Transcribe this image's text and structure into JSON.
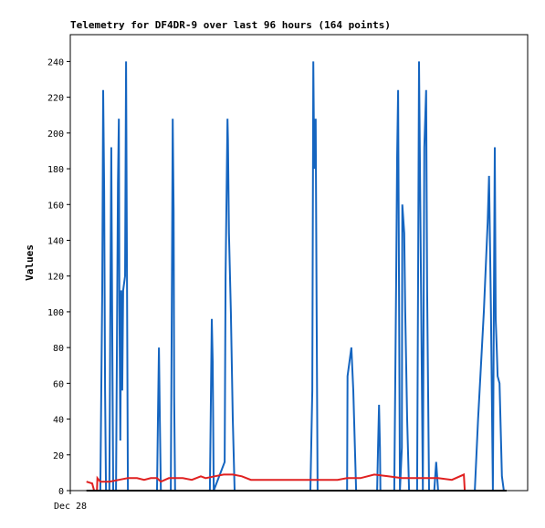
{
  "chart_data": {
    "type": "line",
    "title": "Telemetry for DF4DR-9 over last 96 hours (164 points)",
    "y_label": "Values",
    "xlim": [
      0,
      96
    ],
    "xticks": [
      {
        "value": 0,
        "label": "Dec 28"
      }
    ],
    "ylim": [
      0,
      255
    ],
    "yticks": [
      0,
      20,
      40,
      60,
      80,
      100,
      120,
      140,
      160,
      180,
      200,
      220,
      240
    ],
    "grid": false,
    "series": [
      {
        "color": "#1565c0",
        "x": [
          6.3,
          6.7,
          6.9,
          7.1,
          7.3,
          7.5,
          8.2,
          8.4,
          8.6,
          8.8,
          9.0,
          9.6,
          10.0,
          10.2,
          10.3,
          10.5,
          10.7,
          10.9,
          11.1,
          11.5,
          11.7,
          11.9,
          12.1,
          18.2,
          18.4,
          18.6,
          18.8,
          19.0,
          21.1,
          21.3,
          21.5,
          21.7,
          21.8,
          22.0,
          29.3,
          29.7,
          29.9,
          30.1,
          32.4,
          32.6,
          33.0,
          33.1,
          33.3,
          33.7,
          34.1,
          34.5,
          50.4,
          50.8,
          51.0,
          51.2,
          51.5,
          51.7,
          51.9,
          58.1,
          58.2,
          58.6,
          59.0,
          59.4,
          60.0,
          64.4,
          64.6,
          64.8,
          65.0,
          65.1,
          68.0,
          68.4,
          68.6,
          68.8,
          69.0,
          69.2,
          69.6,
          69.7,
          70.1,
          70.3,
          70.7,
          71.1,
          72.8,
          73.0,
          73.2,
          73.6,
          74.0,
          74.3,
          74.7,
          74.9,
          75.3,
          76.4,
          76.8,
          77.2,
          84.9,
          85.6,
          86.8,
          87.6,
          87.9,
          88.3,
          88.7,
          88.9,
          89.1,
          89.3,
          89.5,
          89.7,
          90.1,
          90.6,
          91.0
        ],
        "values": [
          0,
          112,
          224,
          168,
          56,
          0,
          0,
          96,
          192,
          96,
          0,
          0,
          172,
          208,
          104,
          28,
          112,
          56,
          112,
          120,
          240,
          120,
          0,
          0,
          40,
          80,
          40,
          0,
          0,
          104,
          208,
          156,
          52,
          0,
          0,
          96,
          72,
          0,
          16,
          120,
          208,
          196,
          144,
          100,
          40,
          0,
          0,
          56,
          240,
          180,
          208,
          104,
          0,
          0,
          64,
          72,
          80,
          56,
          0,
          0,
          24,
          48,
          24,
          0,
          0,
          120,
          186,
          224,
          112,
          0,
          24,
          160,
          144,
          100,
          40,
          0,
          0,
          120,
          240,
          120,
          0,
          192,
          224,
          112,
          0,
          0,
          16,
          0,
          0,
          40,
          100,
          150,
          176,
          100,
          0,
          96,
          192,
          96,
          80,
          64,
          60,
          8,
          0
        ]
      },
      {
        "color": "#e02020",
        "x": [
          3.4,
          4.6,
          5.0,
          5.6,
          5.7,
          6.3,
          8.2,
          10.2,
          12.1,
          14.0,
          15.5,
          16.9,
          18.2,
          19.0,
          20.7,
          23.6,
          25.5,
          27.4,
          28.4,
          30.3,
          32.2,
          34.1,
          36.0,
          37.9,
          42.7,
          50.4,
          56.1,
          58.1,
          60.9,
          63.8,
          66.7,
          69.6,
          73.4,
          77.2,
          80.1,
          82.6,
          82.8
        ],
        "values": [
          5,
          4,
          0,
          0,
          7,
          5,
          5,
          6,
          7,
          7,
          6,
          7,
          7,
          5,
          7,
          7,
          6,
          8,
          7,
          8,
          9,
          9,
          8,
          6,
          6,
          6,
          6,
          7,
          7,
          9,
          8,
          7,
          7,
          7,
          6,
          9,
          0
        ]
      },
      {
        "color": "#000000",
        "x": [
          3.4,
          91.6
        ],
        "values": [
          0,
          0
        ]
      }
    ]
  }
}
